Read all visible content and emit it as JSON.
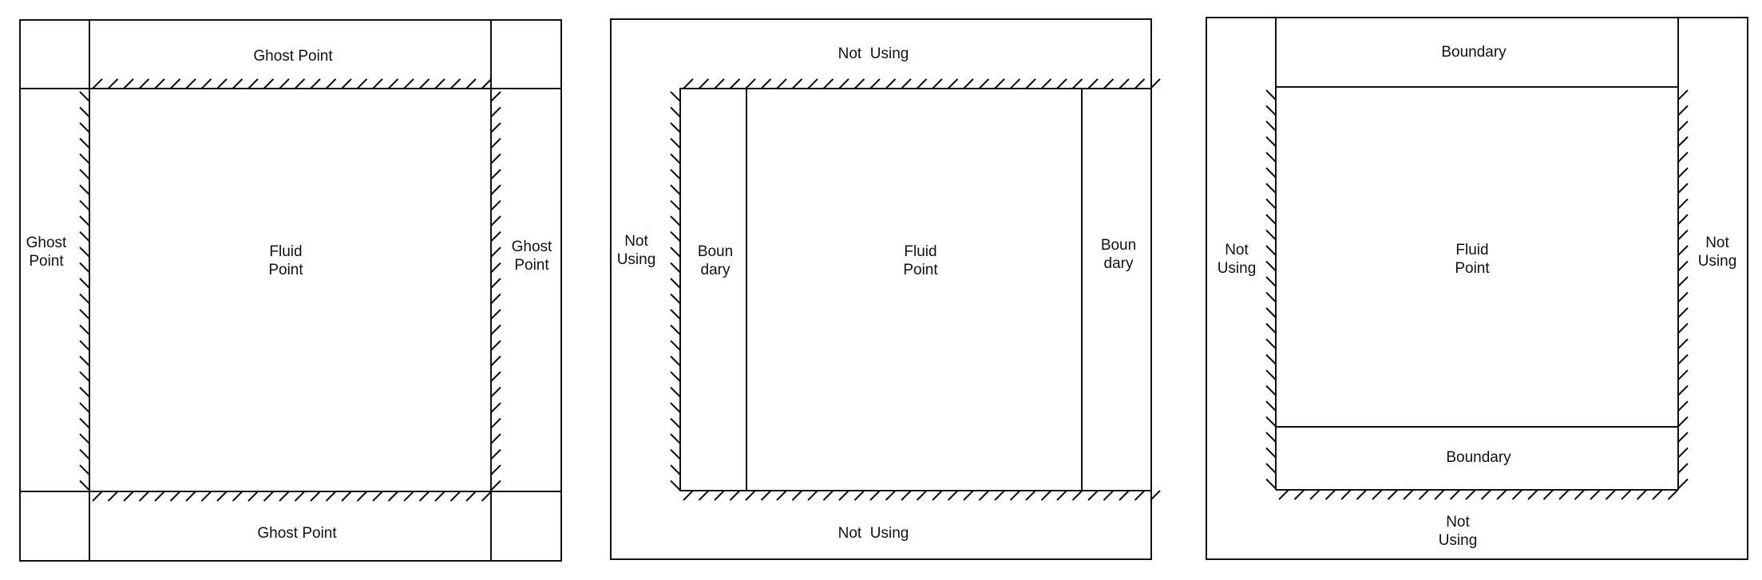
{
  "panels": [
    {
      "id": "panel-1",
      "center": [
        "Fluid",
        "Point"
      ],
      "top": [
        "Ghost Point"
      ],
      "bottom": [
        "Ghost Point"
      ],
      "left": [
        "Ghost",
        "Point"
      ],
      "right": [
        "Ghost",
        "Point"
      ]
    },
    {
      "id": "panel-2",
      "center": [
        "Fluid",
        "Point"
      ],
      "top": [
        "Not  Using"
      ],
      "bottom": [
        "Not  Using"
      ],
      "left": [
        "Not",
        "Using"
      ],
      "left_inner": [
        "Boun",
        "dary"
      ],
      "right_inner": [
        "Boun",
        "dary"
      ]
    },
    {
      "id": "panel-3",
      "center": [
        "Fluid",
        "Point"
      ],
      "top_inner": [
        "Boundary"
      ],
      "bottom_inner": [
        "Boundary"
      ],
      "left": [
        "Not",
        "Using"
      ],
      "right": [
        "Not",
        "Using"
      ],
      "bottom": [
        "Not",
        "Using"
      ]
    }
  ]
}
